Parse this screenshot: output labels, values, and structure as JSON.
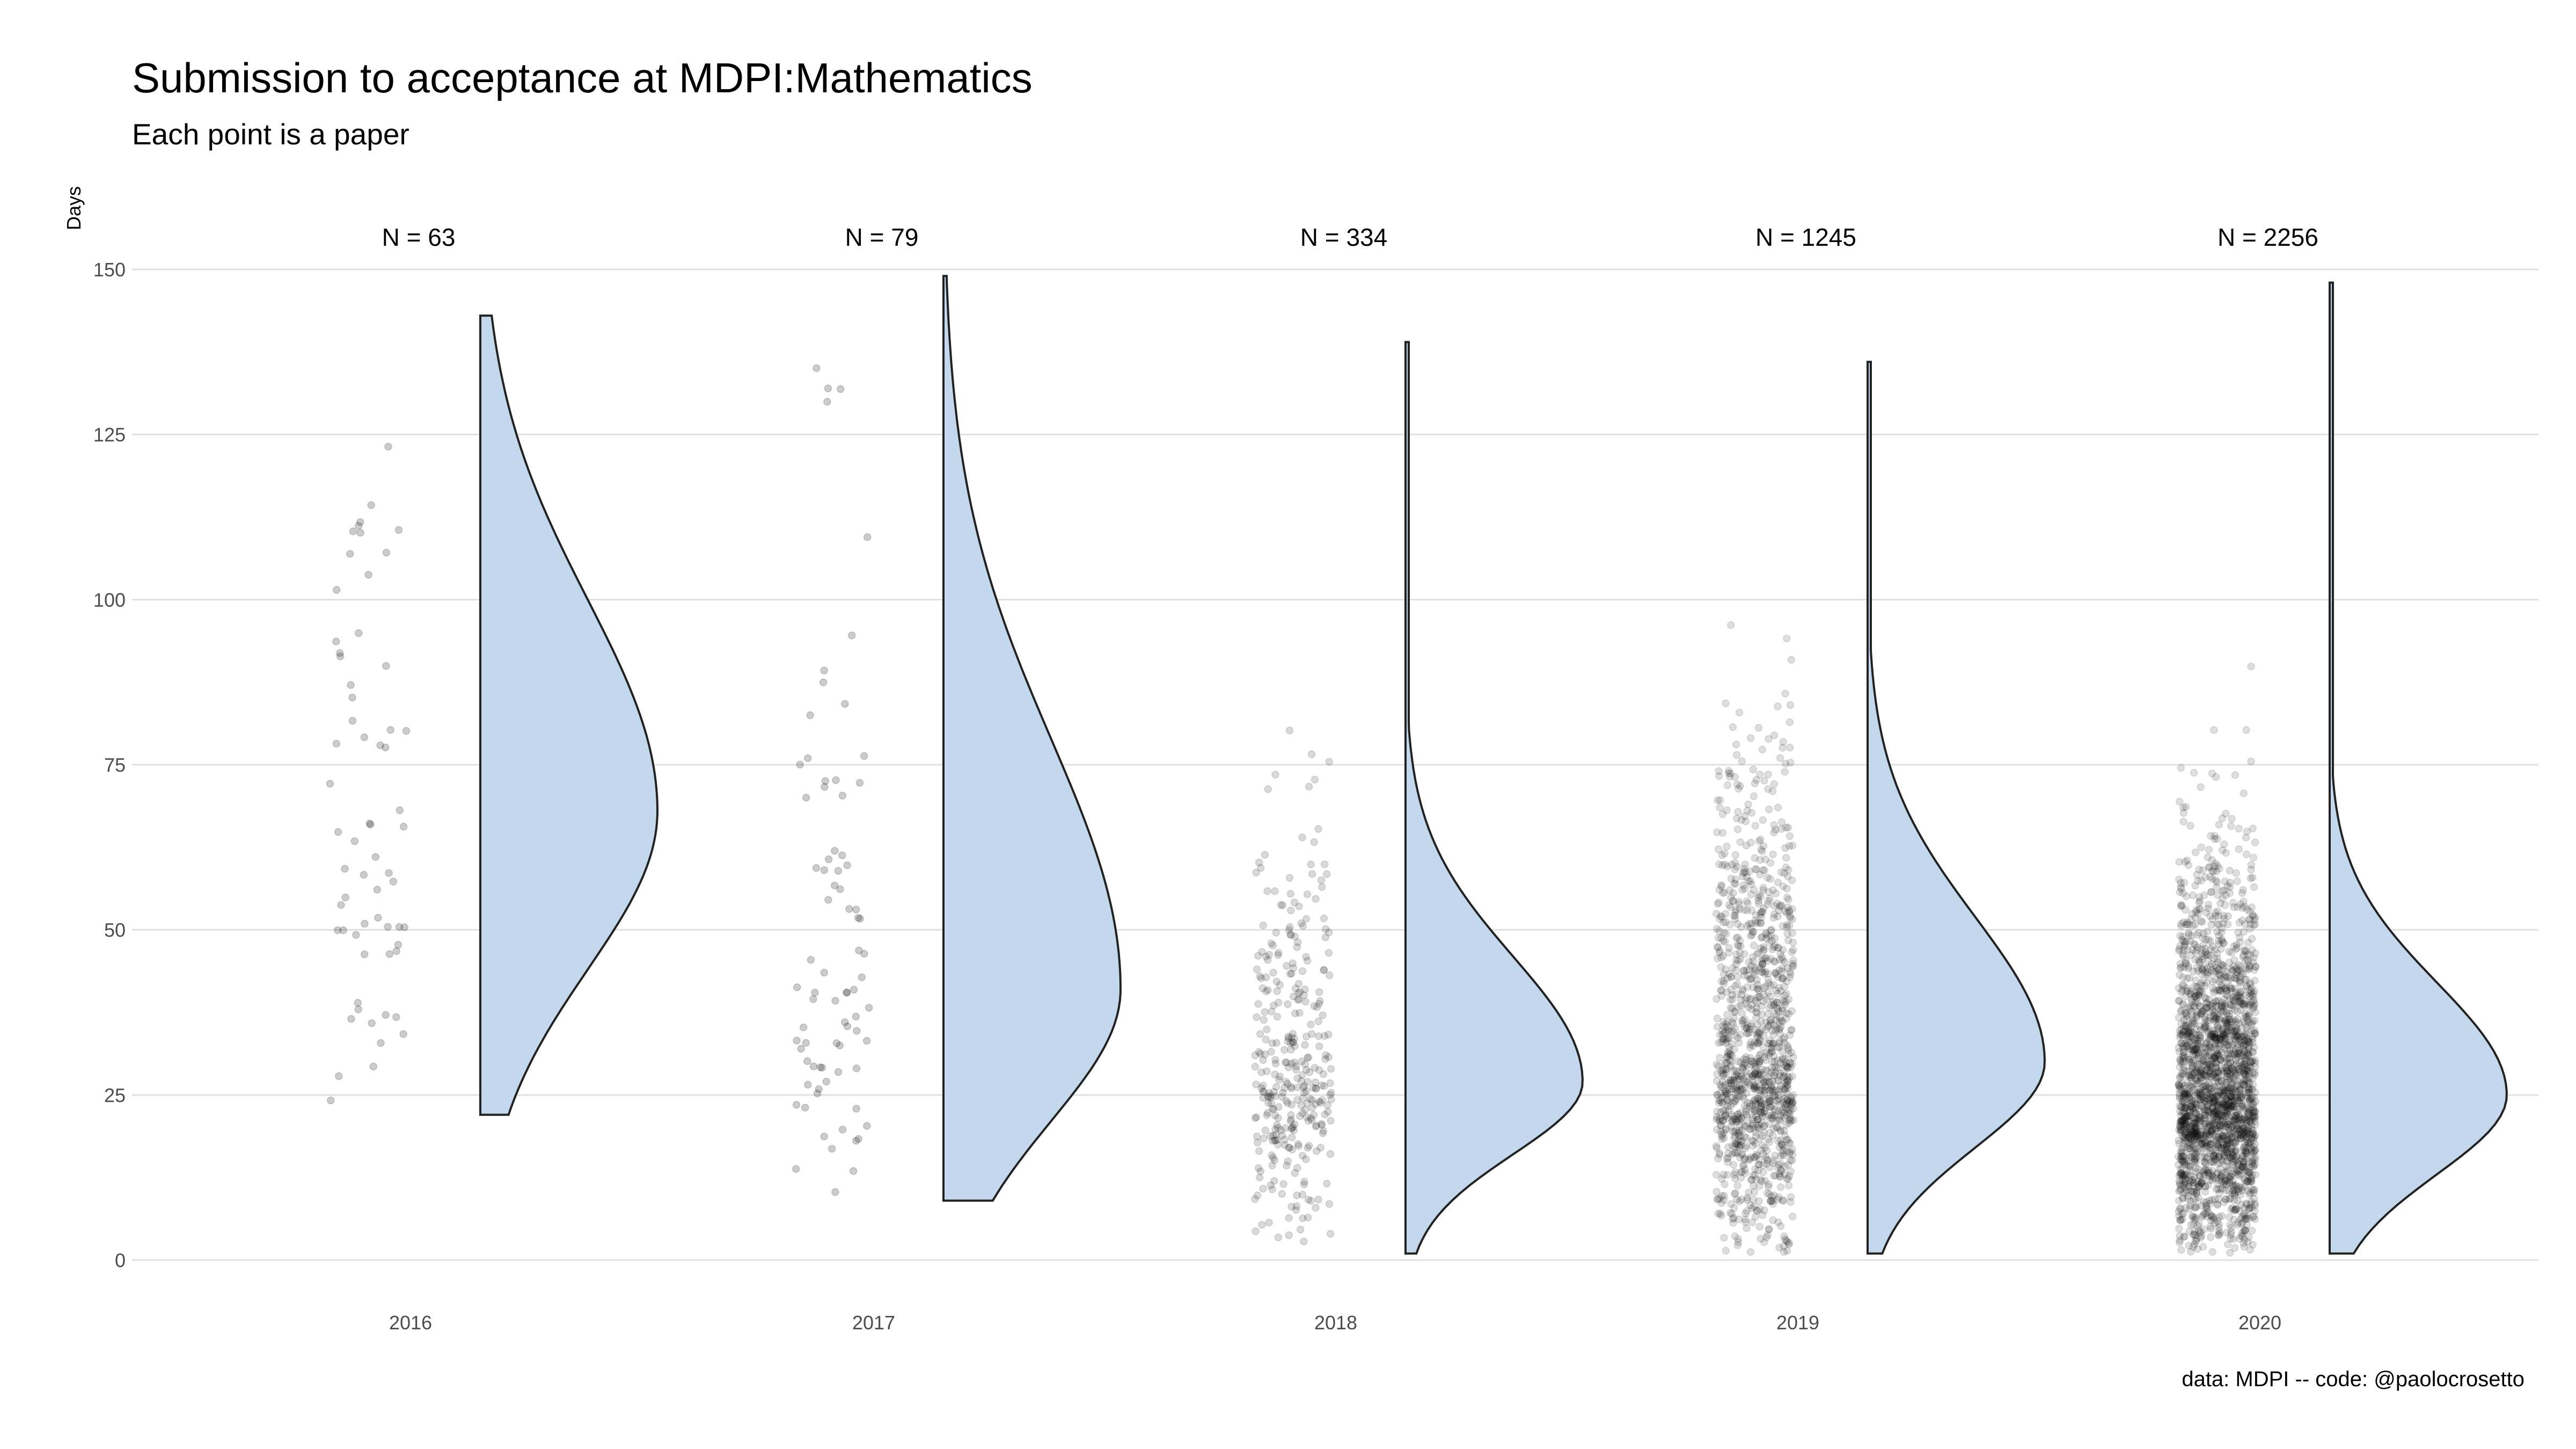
{
  "header": {
    "title": "Submission to acceptance at MDPI:Mathematics",
    "subtitle": "Each point is a paper",
    "caption": "data: MDPI -- code: @paolocrosetto"
  },
  "chart_data": {
    "type": "raincloud",
    "title": "Submission to acceptance at MDPI:Mathematics",
    "subtitle": "Each point is a paper",
    "xlabel": "",
    "ylabel": "Days",
    "ylim": [
      0,
      150
    ],
    "yticks": [
      0,
      25,
      50,
      75,
      100,
      125,
      150
    ],
    "grid": true,
    "colors": {
      "density_fill": "#c3d8ec",
      "density_stroke": "#222222",
      "points": "#000000",
      "grid": "#e0e0e0"
    },
    "groups": [
      {
        "label": "2016",
        "count_label": "N = 63",
        "n": 63,
        "range": [
          22,
          143
        ],
        "peak": 68,
        "sd_low": 24,
        "sd_high": 32
      },
      {
        "label": "2017",
        "count_label": "N = 79",
        "n": 79,
        "range": [
          9,
          149
        ],
        "peak": 41,
        "sd_low": 20,
        "sd_high": 38
      },
      {
        "label": "2018",
        "count_label": "N = 334",
        "n": 334,
        "range": [
          1,
          139
        ],
        "peak": 27,
        "sd_low": 11,
        "sd_high": 19
      },
      {
        "label": "2019",
        "count_label": "N = 1245",
        "n": 1245,
        "range": [
          1,
          136
        ],
        "peak": 30,
        "sd_low": 13,
        "sd_high": 22
      },
      {
        "label": "2020",
        "count_label": "N = 2256",
        "n": 2256,
        "range": [
          1,
          148
        ],
        "peak": 25,
        "sd_low": 12,
        "sd_high": 17
      }
    ]
  }
}
